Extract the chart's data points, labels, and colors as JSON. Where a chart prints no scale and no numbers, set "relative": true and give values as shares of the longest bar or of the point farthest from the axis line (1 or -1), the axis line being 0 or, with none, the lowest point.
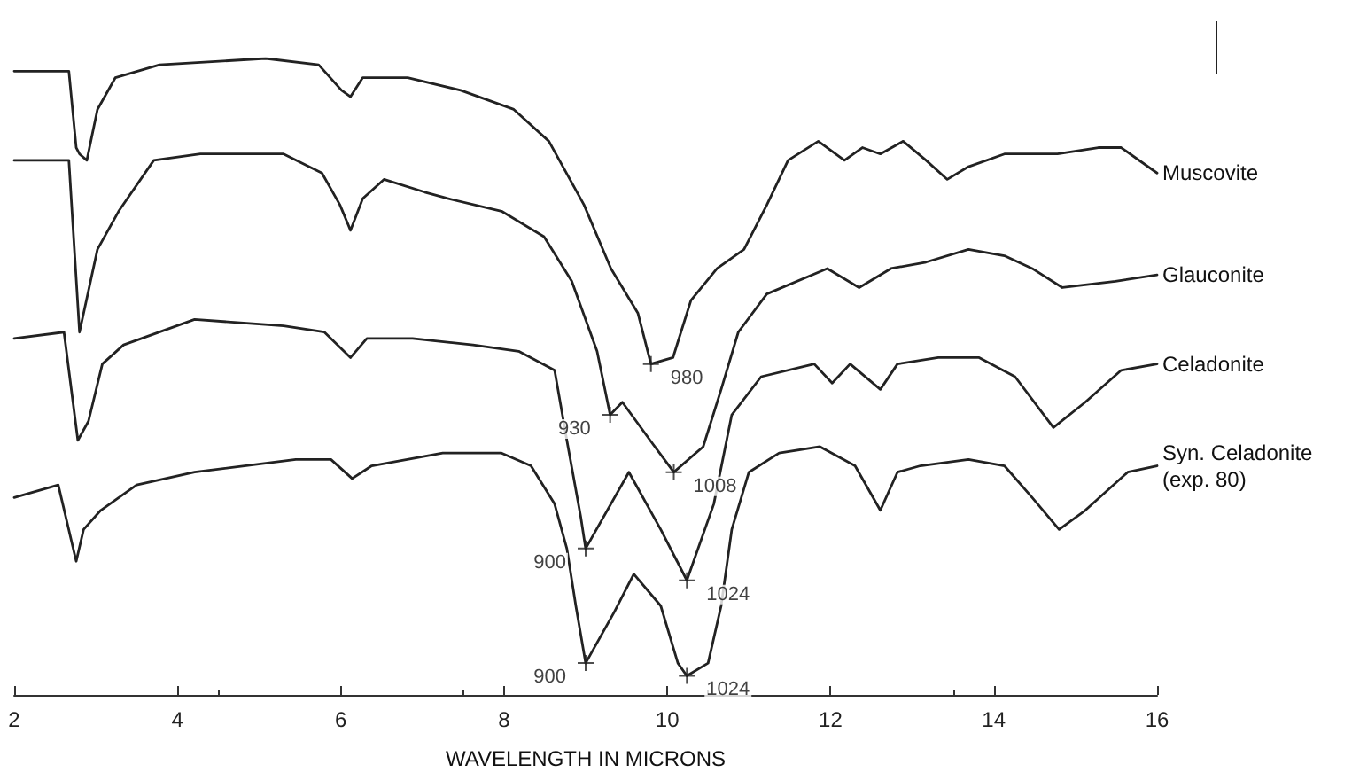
{
  "chart_data": {
    "type": "line",
    "relative": true,
    "xlabel": "WAVELENGTH IN MICRONS",
    "xlim": [
      2,
      16
    ],
    "xticks": [
      2,
      4,
      6,
      8,
      10,
      12,
      14,
      16
    ],
    "grid": false,
    "legend": false,
    "marker": "none",
    "line_style": "solid",
    "series": [
      {
        "name": "Muscovite",
        "color": "#222222",
        "x": [
          2.0,
          2.67,
          2.76,
          2.8,
          2.89,
          3.02,
          3.24,
          3.78,
          5.08,
          5.73,
          6.01,
          6.12,
          6.27,
          6.82,
          7.47,
          8.12,
          8.55,
          8.98,
          9.31,
          9.64,
          9.8,
          10.07,
          10.29,
          10.61,
          10.94,
          11.22,
          11.48,
          11.85,
          12.17,
          12.39,
          12.61,
          12.89,
          13.17,
          13.43,
          13.69,
          14.13,
          14.78,
          15.28,
          15.56,
          16.0
        ],
        "values": [
          0.98,
          0.98,
          0.86,
          0.85,
          0.84,
          0.92,
          0.97,
          0.99,
          1.0,
          0.99,
          0.95,
          0.94,
          0.97,
          0.97,
          0.95,
          0.92,
          0.87,
          0.77,
          0.67,
          0.6,
          0.52,
          0.53,
          0.62,
          0.67,
          0.7,
          0.77,
          0.84,
          0.87,
          0.84,
          0.86,
          0.85,
          0.87,
          0.84,
          0.81,
          0.83,
          0.85,
          0.85,
          0.86,
          0.86,
          0.82
        ]
      },
      {
        "name": "Glauconite",
        "color": "#222222",
        "x": [
          2.0,
          2.67,
          2.8,
          3.02,
          3.28,
          3.71,
          4.28,
          5.3,
          5.77,
          5.99,
          6.12,
          6.27,
          6.53,
          7.03,
          7.31,
          7.97,
          8.49,
          8.83,
          9.14,
          9.3,
          9.45,
          9.79,
          10.08,
          10.44,
          10.66,
          10.87,
          11.22,
          11.96,
          12.35,
          12.74,
          13.17,
          13.69,
          14.13,
          14.47,
          14.84,
          15.49,
          16.0
        ],
        "values": [
          0.84,
          0.84,
          0.57,
          0.7,
          0.76,
          0.84,
          0.85,
          0.85,
          0.82,
          0.77,
          0.73,
          0.78,
          0.81,
          0.79,
          0.78,
          0.76,
          0.72,
          0.65,
          0.54,
          0.44,
          0.46,
          0.4,
          0.35,
          0.39,
          0.48,
          0.57,
          0.63,
          0.67,
          0.64,
          0.67,
          0.68,
          0.7,
          0.69,
          0.67,
          0.64,
          0.65,
          0.66
        ]
      },
      {
        "name": "Celadonite",
        "color": "#222222",
        "x": [
          2.0,
          2.61,
          2.78,
          2.91,
          3.08,
          3.34,
          4.21,
          5.3,
          5.8,
          6.12,
          6.32,
          6.88,
          7.62,
          8.18,
          8.62,
          8.77,
          8.94,
          9.0,
          9.53,
          9.92,
          10.24,
          10.57,
          10.79,
          11.15,
          11.8,
          12.02,
          12.24,
          12.61,
          12.82,
          13.32,
          13.82,
          14.26,
          14.73,
          15.12,
          15.56,
          16.0
        ],
        "values": [
          0.56,
          0.57,
          0.4,
          0.43,
          0.52,
          0.55,
          0.59,
          0.58,
          0.57,
          0.53,
          0.56,
          0.56,
          0.55,
          0.54,
          0.51,
          0.4,
          0.28,
          0.23,
          0.35,
          0.26,
          0.18,
          0.3,
          0.44,
          0.5,
          0.52,
          0.49,
          0.52,
          0.48,
          0.52,
          0.53,
          0.53,
          0.5,
          0.42,
          0.46,
          0.51,
          0.52
        ]
      },
      {
        "name": "Syn. Celadonite (exp. 80)",
        "color": "#222222",
        "x": [
          2.0,
          2.54,
          2.76,
          2.85,
          3.06,
          3.5,
          4.21,
          5.45,
          5.88,
          6.14,
          6.38,
          7.25,
          7.97,
          8.33,
          8.62,
          8.77,
          8.88,
          9.0,
          9.35,
          9.59,
          9.92,
          10.13,
          10.24,
          10.5,
          10.66,
          10.79,
          11.0,
          11.37,
          11.87,
          12.3,
          12.61,
          12.82,
          13.1,
          13.69,
          14.13,
          14.47,
          14.8,
          15.12,
          15.64,
          16.0
        ],
        "values": [
          0.31,
          0.33,
          0.21,
          0.26,
          0.29,
          0.33,
          0.35,
          0.37,
          0.37,
          0.34,
          0.36,
          0.38,
          0.38,
          0.36,
          0.3,
          0.23,
          0.14,
          0.05,
          0.13,
          0.19,
          0.14,
          0.05,
          0.03,
          0.05,
          0.14,
          0.26,
          0.35,
          0.38,
          0.39,
          0.36,
          0.29,
          0.35,
          0.36,
          0.37,
          0.36,
          0.31,
          0.26,
          0.29,
          0.35,
          0.36
        ]
      }
    ],
    "annotations": [
      {
        "text": "980",
        "x": 9.8,
        "y": 0.52
      },
      {
        "text": "930",
        "x": 9.3,
        "y": 0.44
      },
      {
        "text": "1008",
        "x": 10.08,
        "y": 0.35
      },
      {
        "text": "900",
        "x": 9.0,
        "y": 0.23
      },
      {
        "text": "1024",
        "x": 10.24,
        "y": 0.18
      },
      {
        "text": "900",
        "x": 9.0,
        "y": 0.05
      },
      {
        "text": "1024",
        "x": 10.24,
        "y": 0.03
      }
    ]
  }
}
